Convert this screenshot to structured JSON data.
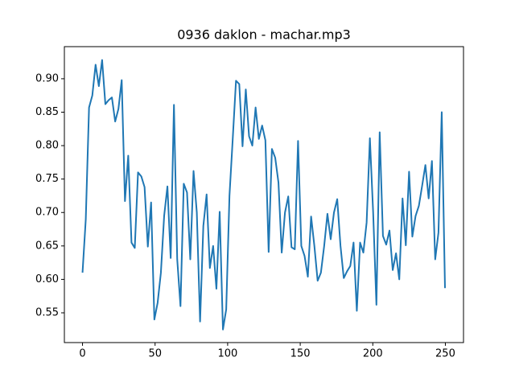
{
  "chart_data": {
    "type": "line",
    "title": "0936 daklon - machar.mp3",
    "x": [
      0,
      2.25,
      4.5,
      6.75,
      9,
      11.25,
      13.5,
      15.75,
      18,
      20.25,
      22.5,
      24.75,
      27,
      29.25,
      31.5,
      33.75,
      36,
      38.25,
      40.5,
      42.75,
      45,
      47.25,
      49.5,
      51.75,
      54,
      56.25,
      58.5,
      60.75,
      63,
      65.25,
      67.5,
      69.75,
      72,
      74.25,
      76.5,
      78.75,
      81,
      83.25,
      85.5,
      87.75,
      90,
      92.25,
      94.5,
      96.75,
      99,
      101.25,
      103.5,
      105.75,
      108,
      110.25,
      112.5,
      114.75,
      117,
      119.25,
      121.5,
      123.75,
      126,
      128.25,
      130.5,
      132.75,
      135,
      137.25,
      139.5,
      141.75,
      144,
      146.25,
      148.5,
      150.75,
      153,
      155.25,
      157.5,
      159.75,
      162,
      164.25,
      166.5,
      168.75,
      171,
      173.25,
      175.5,
      177.75,
      180,
      182.25,
      184.5,
      186.75,
      189,
      191.25,
      193.5,
      195.75,
      198,
      200.25,
      202.5,
      204.75,
      207,
      209.25,
      211.5,
      213.75,
      216,
      218.25,
      220.5,
      222.75,
      225,
      227.25,
      229.5,
      231.75,
      234,
      236.25,
      238.5,
      240.75,
      243,
      245.25,
      247.5,
      249.75
    ],
    "series": [
      {
        "color": "#1f77b4",
        "values": [
          0.61,
          0.69,
          0.857,
          0.875,
          0.921,
          0.889,
          0.928,
          0.862,
          0.868,
          0.872,
          0.836,
          0.855,
          0.898,
          0.717,
          0.785,
          0.655,
          0.647,
          0.76,
          0.754,
          0.738,
          0.649,
          0.715,
          0.54,
          0.565,
          0.61,
          0.695,
          0.739,
          0.632,
          0.861,
          0.63,
          0.56,
          0.743,
          0.73,
          0.63,
          0.762,
          0.7,
          0.537,
          0.68,
          0.727,
          0.617,
          0.65,
          0.586,
          0.701,
          0.525,
          0.555,
          0.725,
          0.81,
          0.897,
          0.892,
          0.799,
          0.884,
          0.814,
          0.8,
          0.857,
          0.81,
          0.83,
          0.808,
          0.641,
          0.795,
          0.782,
          0.745,
          0.64,
          0.7,
          0.724,
          0.648,
          0.645,
          0.807,
          0.65,
          0.635,
          0.604,
          0.694,
          0.65,
          0.598,
          0.61,
          0.65,
          0.698,
          0.66,
          0.7,
          0.72,
          0.65,
          0.602,
          0.612,
          0.62,
          0.655,
          0.553,
          0.655,
          0.64,
          0.685,
          0.811,
          0.7,
          0.562,
          0.82,
          0.665,
          0.652,
          0.673,
          0.614,
          0.639,
          0.6,
          0.721,
          0.651,
          0.761,
          0.664,
          0.695,
          0.71,
          0.74,
          0.771,
          0.721,
          0.777,
          0.63,
          0.67,
          0.85,
          0.587
        ]
      }
    ],
    "xlim": [
      -12.5,
      262.5
    ],
    "ylim": [
      0.5055,
      0.948
    ],
    "xticks": [
      0,
      50,
      100,
      150,
      200,
      250
    ],
    "yticks": [
      0.55,
      {
        "value": 0.6,
        "label": "0.60"
      },
      0.65,
      {
        "value": 0.7,
        "label": "0.70"
      },
      0.75,
      {
        "value": 0.8,
        "label": "0.80"
      },
      0.85,
      {
        "value": 0.9,
        "label": "0.90"
      }
    ]
  }
}
